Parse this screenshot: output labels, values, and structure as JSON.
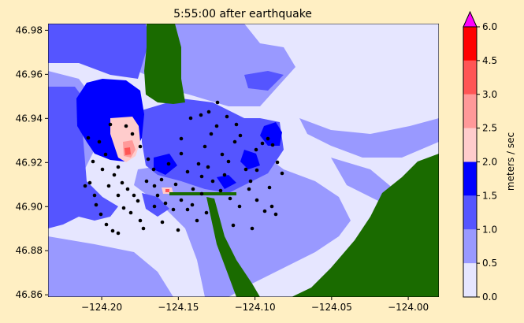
{
  "chart_data": {
    "type": "heatmap",
    "title": "5:55:00 after earthquake",
    "x_ticks": [
      -124.2,
      -124.15,
      -124.1,
      -124.05,
      -124.0
    ],
    "x_tick_labels": [
      "−124.20",
      "−124.15",
      "−124.10",
      "−124.05",
      "−124.00"
    ],
    "y_ticks": [
      46.86,
      46.88,
      46.9,
      46.92,
      46.94,
      46.96,
      46.98
    ],
    "y_tick_labels": [
      "46.86",
      "46.88",
      "46.90",
      "46.92",
      "46.94",
      "46.96",
      "46.98"
    ],
    "xlim": [
      -124.235,
      -123.98
    ],
    "ylim": [
      46.859,
      46.983
    ],
    "colorbar": {
      "label": "meters / sec",
      "levels": [
        0.0,
        0.5,
        1.0,
        1.5,
        2.0,
        2.5,
        3.0,
        4.5,
        6.0
      ],
      "level_labels": [
        "0.0",
        "0.5",
        "1.0",
        "1.5",
        "2.0",
        "2.5",
        "3.0",
        "4.5",
        "6.0"
      ],
      "colors": [
        "#e6e6ff",
        "#9999ff",
        "#5555ff",
        "#0000ff",
        "#ffcccc",
        "#ff9999",
        "#ff5555",
        "#ff0000"
      ],
      "extend_color": "#ff00ff"
    },
    "land_color": "#1a6b00"
  }
}
